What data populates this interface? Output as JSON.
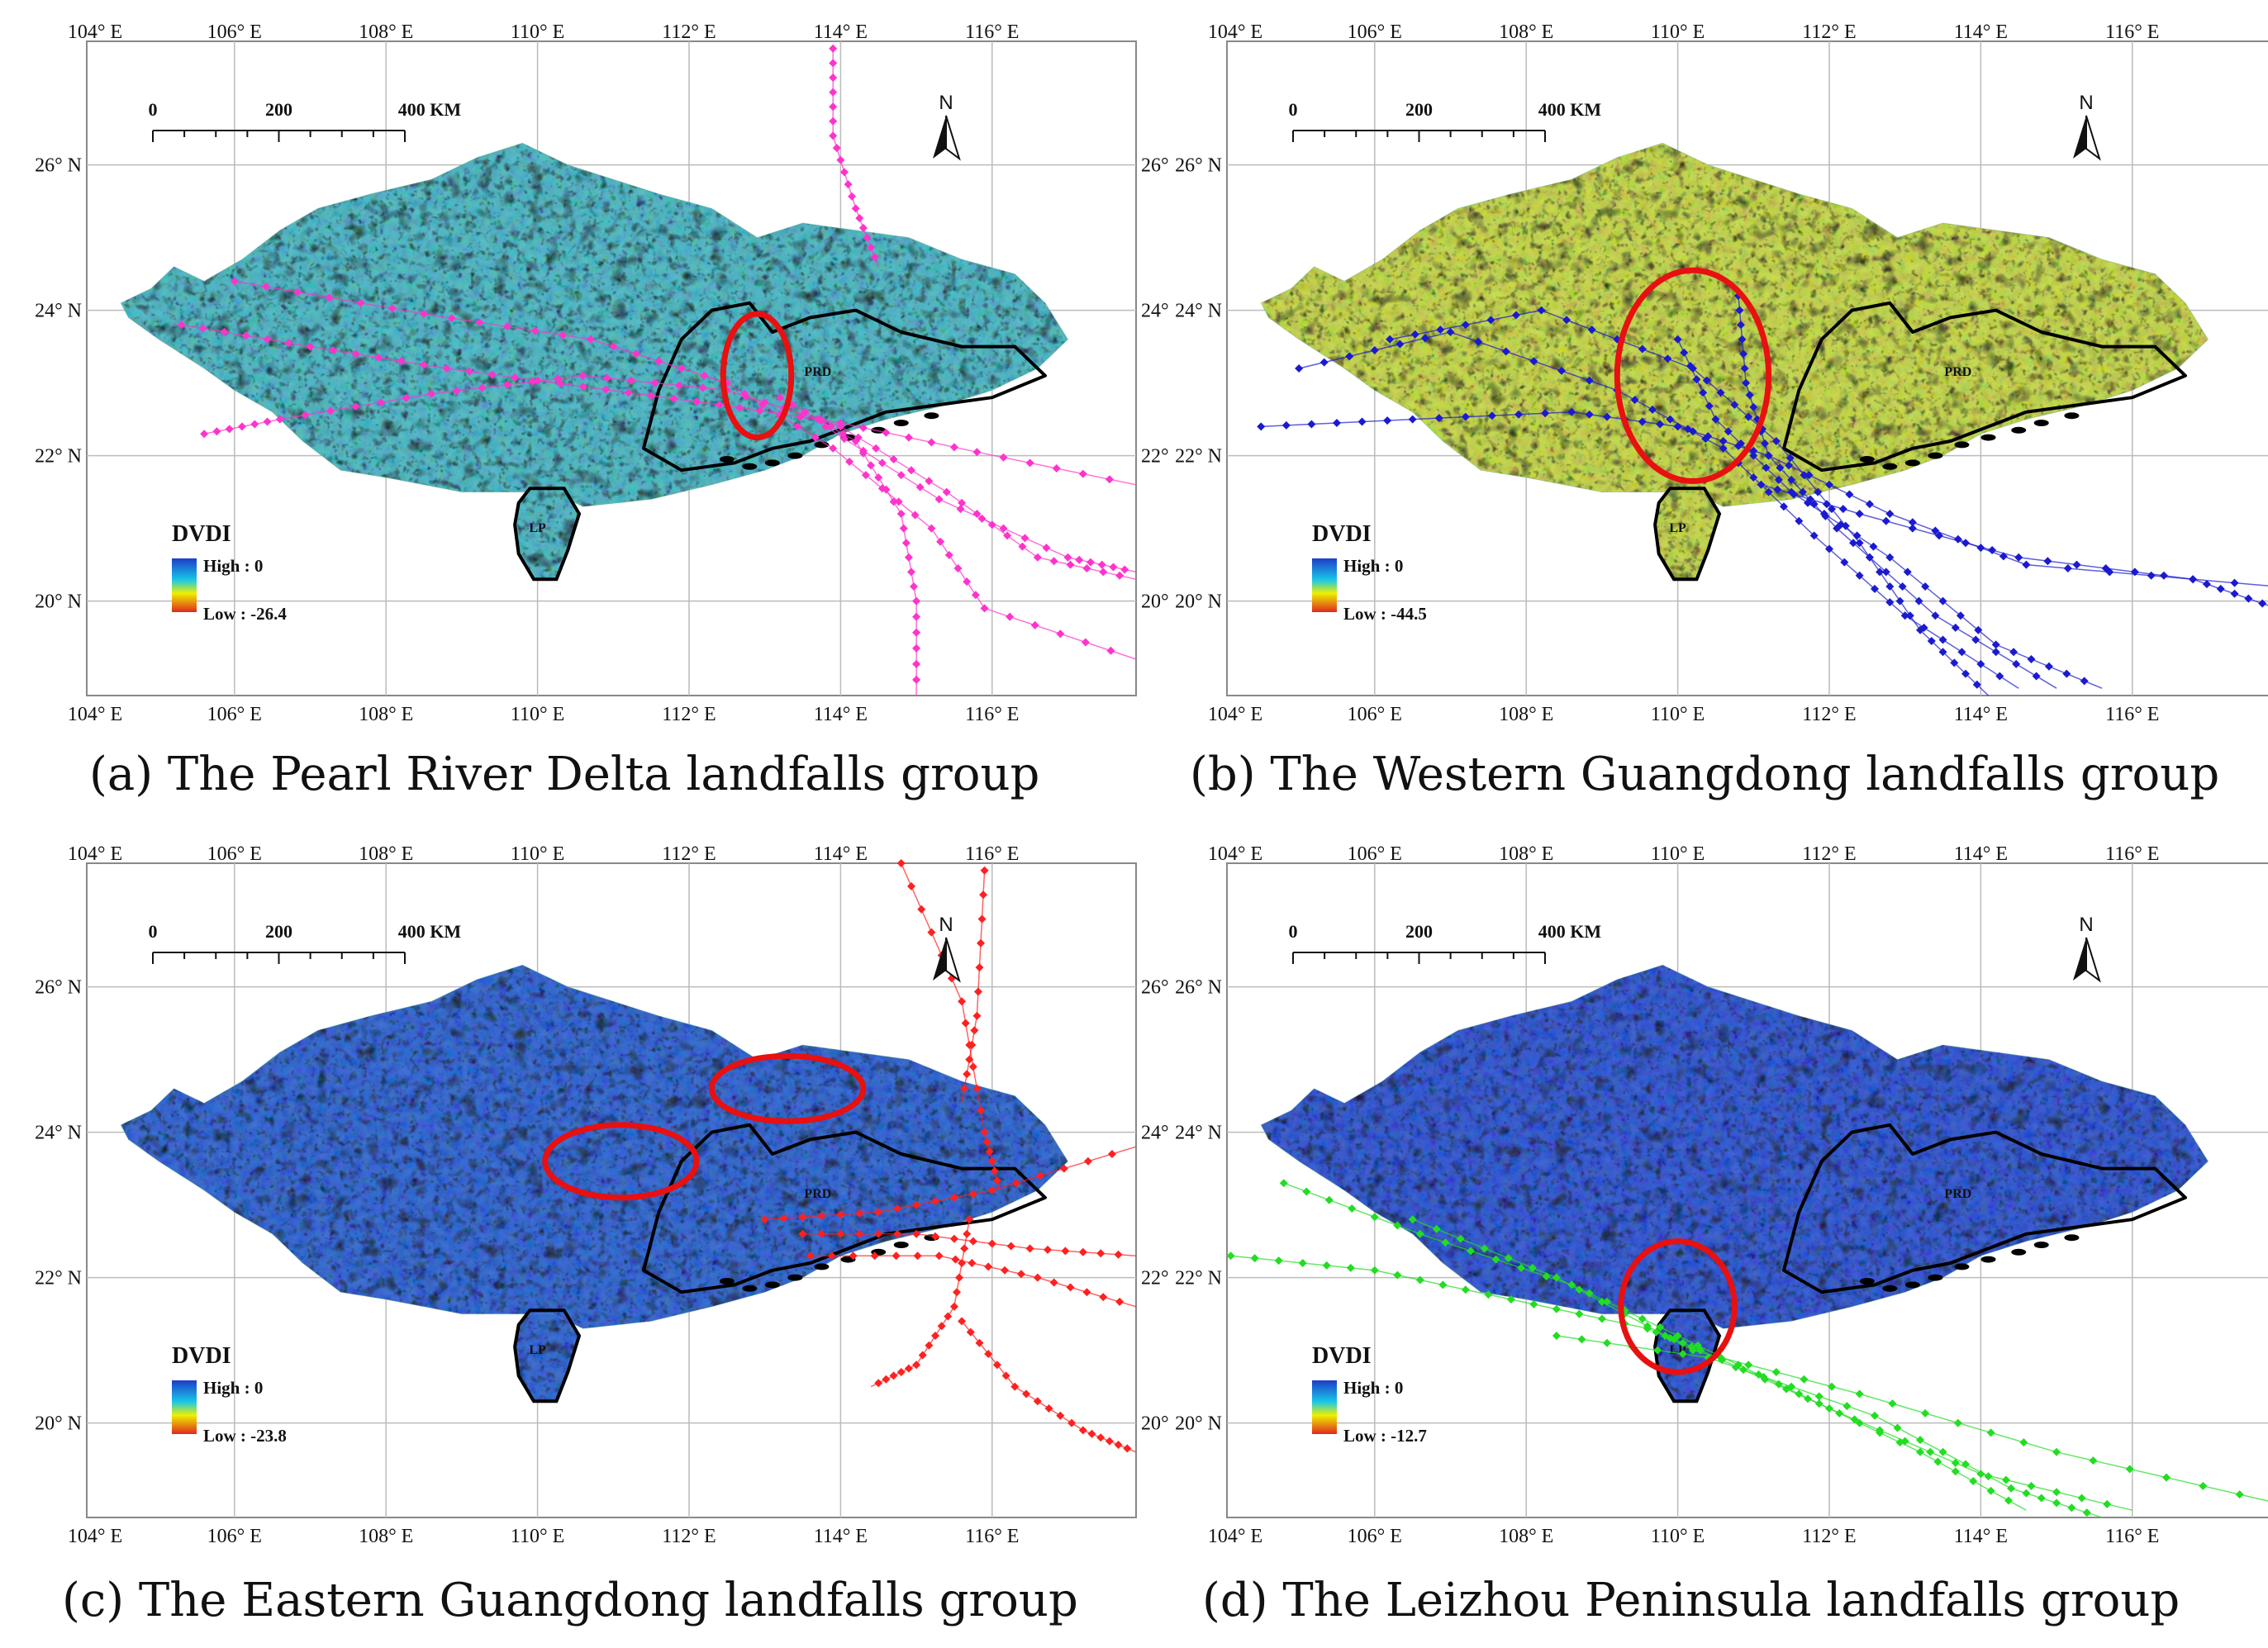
{
  "figure": {
    "scale_bar": {
      "labels": [
        "0",
        "200",
        "400 KM"
      ]
    },
    "north_label": "N",
    "legend": {
      "title": "DVDI",
      "high_label": "High : 0"
    },
    "lon_labels": [
      "104° E",
      "106° E",
      "108° E",
      "110° E",
      "112° E",
      "114° E",
      "116° E"
    ],
    "lat_labels_left": [
      "26° N",
      "24° N",
      "22° N",
      "20° N"
    ],
    "lat_labels_right": [
      "26°",
      "24°",
      "22°",
      "20°"
    ],
    "region_labels": {
      "prd": "PRD",
      "lp": "LP"
    },
    "colors": {
      "high": "#1e3cc8",
      "mid": "#eef000",
      "low": "#e0281e",
      "boundary": "#000000",
      "highlight": "#e81010"
    }
  },
  "panels": [
    {
      "caption": "(a) The Pearl River Delta landfalls group",
      "low_label": "Low : -26.4",
      "track_color": "#ff33cc",
      "base_color": "#3fb8c8",
      "highlights": [
        {
          "lon": 112.9,
          "lat": 23.1,
          "rx_deg": 0.45,
          "ry_deg": 0.85
        }
      ]
    },
    {
      "caption": "(b) The Western Guangdong landfalls group",
      "low_label": "Low : -44.5",
      "track_color": "#1a1ad0",
      "base_color": "#c8dc3c",
      "highlights": [
        {
          "lon": 110.2,
          "lat": 23.1,
          "rx_deg": 1.0,
          "ry_deg": 1.45
        }
      ]
    },
    {
      "caption": "(c) The Eastern Guangdong landfalls group",
      "low_label": "Low : -23.8",
      "track_color": "#ff2020",
      "base_color": "#1e5ad8",
      "highlights": [
        {
          "lon": 111.1,
          "lat": 23.6,
          "rx_deg": 1.0,
          "ry_deg": 0.5
        },
        {
          "lon": 113.3,
          "lat": 24.6,
          "rx_deg": 1.0,
          "ry_deg": 0.45
        }
      ]
    },
    {
      "caption": "(d) The Leizhou Peninsula landfalls group",
      "low_label": "Low : -12.7",
      "track_color": "#22dd22",
      "base_color": "#1e4ad8",
      "highlights": [
        {
          "lon": 110.0,
          "lat": 21.6,
          "rx_deg": 0.75,
          "ry_deg": 0.9
        }
      ]
    }
  ]
}
